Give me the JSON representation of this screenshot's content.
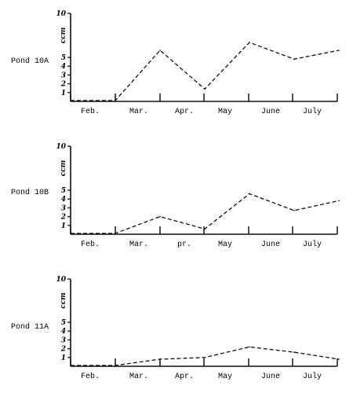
{
  "chart_data": [
    {
      "type": "line",
      "panel_label": "Pond 10A",
      "ylabel": "ccm",
      "categories": [
        "Feb.",
        "Mar.",
        "Apr.",
        "May",
        "June",
        "July"
      ],
      "y_ticks": [
        "1",
        "2",
        "3",
        "4",
        "5",
        "10"
      ],
      "ylim": [
        0,
        10
      ],
      "series": [
        {
          "points": [
            [
              0,
              0.1
            ],
            [
              1,
              0.1
            ],
            [
              2,
              5.8
            ],
            [
              3,
              1.4
            ],
            [
              4,
              6.7
            ],
            [
              5,
              4.8
            ],
            [
              6,
              5.8
            ]
          ]
        }
      ]
    },
    {
      "type": "line",
      "panel_label": "Pond 10B",
      "ylabel": "ccm",
      "categories": [
        "Feb.",
        "Mar.",
        "pr.",
        "May",
        "June",
        "July"
      ],
      "y_ticks": [
        "1",
        "2",
        "3",
        "4",
        "5",
        "10"
      ],
      "ylim": [
        0,
        10
      ],
      "series": [
        {
          "points": [
            [
              0,
              0.1
            ],
            [
              1,
              0.1
            ],
            [
              2,
              2.0
            ],
            [
              3,
              0.6
            ],
            [
              4,
              4.6
            ],
            [
              5,
              2.7
            ],
            [
              6,
              3.8
            ]
          ]
        }
      ]
    },
    {
      "type": "line",
      "panel_label": "Pond 11A",
      "ylabel": "ccm",
      "categories": [
        "Feb.",
        "Mar.",
        "Apr.",
        "May",
        "June",
        "July"
      ],
      "y_ticks": [
        "1",
        "2",
        "3",
        "4",
        "5",
        "10"
      ],
      "ylim": [
        0,
        10
      ],
      "series": [
        {
          "points": [
            [
              0,
              0.1
            ],
            [
              1,
              0.1
            ],
            [
              2,
              0.8
            ],
            [
              3,
              1.0
            ],
            [
              4,
              2.2
            ],
            [
              5,
              1.6
            ],
            [
              6,
              0.8
            ]
          ]
        }
      ]
    }
  ]
}
